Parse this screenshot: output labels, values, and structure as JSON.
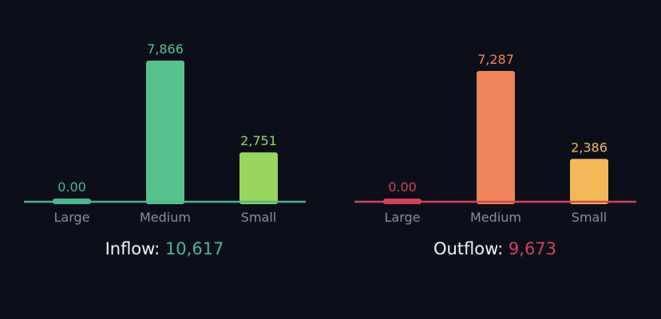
{
  "chart_data": [
    {
      "type": "bar",
      "categories": [
        "Large",
        "Medium",
        "Small"
      ],
      "values": [
        0.0,
        7866,
        2751
      ],
      "value_labels": [
        "0.00",
        "7,866",
        "2,751"
      ],
      "colors": [
        "#4db68f",
        "#56c38f",
        "#97d65f"
      ],
      "axis_color": "#4db68f",
      "ylim": [
        0,
        7866
      ],
      "grid": false,
      "summary": {
        "label": "Inflow:",
        "value": "10,617",
        "value_color": "#4db68f"
      }
    },
    {
      "type": "bar",
      "categories": [
        "Large",
        "Medium",
        "Small"
      ],
      "values": [
        0.0,
        7287,
        2386
      ],
      "value_labels": [
        "0.00",
        "7,287",
        "2,386"
      ],
      "colors": [
        "#d2435a",
        "#ef845a",
        "#f2b858"
      ],
      "axis_color": "#d2435a",
      "ylim": [
        0,
        7866
      ],
      "grid": false,
      "summary": {
        "label": "Outflow:",
        "value": "9,673",
        "value_color": "#d2435a"
      }
    }
  ],
  "style": {
    "background": "#0c0f1a",
    "tick_label_color": "#8b8f9a",
    "summary_label_color": "#f2f4f8"
  }
}
